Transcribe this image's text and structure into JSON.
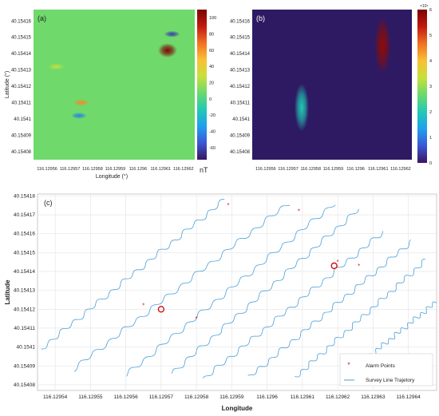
{
  "chart_data": [
    {
      "type": "heatmap",
      "panel_label": "(a)",
      "xlabel": "Longitude (°)",
      "ylabel": "Latitude (°)",
      "x_ticks": [
        "116.12956",
        "116.12957",
        "116.12958",
        "116.12959",
        "116.1296",
        "116.12961",
        "116.12962"
      ],
      "y_ticks": [
        "40.15416",
        "40.15415",
        "40.15414",
        "40.15413",
        "40.15412",
        "40.15411",
        "40.1541",
        "40.15409",
        "40.15408"
      ],
      "colorbar": {
        "unit": "nT",
        "ticks": [
          100,
          80,
          60,
          40,
          20,
          0,
          -20,
          -40,
          -60
        ],
        "range": [
          -75,
          110
        ],
        "colors": [
          "#3b1560",
          "#3b57d6",
          "#1f9fee",
          "#21c9b4",
          "#6bd96d",
          "#c8df3c",
          "#f8c034",
          "#f07022",
          "#c01a0e",
          "#7a0403"
        ]
      },
      "background_value": 8,
      "anomalies": [
        {
          "longitude": 116.129613,
          "latitude": 40.154142,
          "value": 108
        },
        {
          "longitude": 116.129615,
          "latitude": 40.154152,
          "value": -62
        },
        {
          "longitude": 116.129575,
          "latitude": 40.15411,
          "value": 62
        },
        {
          "longitude": 116.129574,
          "latitude": 40.154102,
          "value": -42
        },
        {
          "longitude": 116.129564,
          "latitude": 40.154132,
          "value": 26
        }
      ]
    },
    {
      "type": "heatmap",
      "panel_label": "(b)",
      "x_ticks": [
        "116.12956",
        "116.12957",
        "116.12958",
        "116.12959",
        "116.1296",
        "116.12961",
        "116.12962"
      ],
      "y_ticks": [
        "40.15416",
        "40.15415",
        "40.15414",
        "40.15413",
        "40.15412",
        "40.15411",
        "40.1541",
        "40.15409",
        "40.15408"
      ],
      "colorbar": {
        "exponent_label": "×10⁴",
        "ticks": [
          6,
          5,
          4,
          3,
          2,
          1,
          0
        ],
        "range": [
          0,
          6
        ],
        "colors": [
          "#3b1560",
          "#3b57d6",
          "#1f9fee",
          "#21c9b4",
          "#6bd96d",
          "#c8df3c",
          "#f8c034",
          "#f07022",
          "#c01a0e",
          "#7a0403"
        ]
      },
      "anomalies": [
        {
          "longitude": 116.129612,
          "latitude": 40.154145,
          "value": 5.8
        },
        {
          "longitude": 116.129576,
          "latitude": 40.154107,
          "value": 2.0
        }
      ]
    },
    {
      "type": "line",
      "panel_label": "(c)",
      "xlabel": "Longitude",
      "ylabel": "Latitude",
      "x_ticks": [
        "116.12954",
        "116.12955",
        "116.12956",
        "116.12957",
        "116.12958",
        "116.12959",
        "116.1296",
        "116.12961",
        "116.12962",
        "116.12963",
        "116.12964"
      ],
      "y_ticks": [
        "40.15418",
        "40.15417",
        "40.15416",
        "40.15415",
        "40.15414",
        "40.15413",
        "40.15412",
        "40.15411",
        "40.1541",
        "40.15409",
        "40.15408"
      ],
      "xlim": [
        116.129535,
        116.129648
      ],
      "ylim": [
        40.154077,
        40.154181
      ],
      "grid": true,
      "legend": {
        "position": "bottom-right",
        "entries": [
          "Alarm Points",
          "Survey Line Trajetory"
        ]
      },
      "colors": {
        "trajectory": "#4a9fd8",
        "alarm": "#e02020",
        "circle": "#cc1010"
      },
      "series": [
        {
          "name": "Alarm Points",
          "points": [
            {
              "x": 116.129589,
              "y": 40.154175
            },
            {
              "x": 116.129609,
              "y": 40.154172
            },
            {
              "x": 116.12962,
              "y": 40.154145
            },
            {
              "x": 116.129626,
              "y": 40.154143
            },
            {
              "x": 116.129565,
              "y": 40.154122
            },
            {
              "x": 116.12958,
              "y": 40.154115
            }
          ]
        },
        {
          "name": "Survey Line Trajetory",
          "lines": [
            [
              [
                116.129536,
                40.154099
              ],
              [
                116.129588,
                40.154178
              ]
            ],
            [
              [
                116.129545,
                40.154088
              ],
              [
                116.129606,
                40.154176
              ]
            ],
            [
              [
                116.12956,
                40.154085
              ],
              [
                116.129619,
                40.154176
              ]
            ],
            [
              [
                116.129573,
                40.154086
              ],
              [
                116.129626,
                40.154173
              ]
            ],
            [
              [
                116.129582,
                40.154083
              ],
              [
                116.129633,
                40.154161
              ]
            ],
            [
              [
                116.129595,
                40.154084
              ],
              [
                116.129641,
                40.154156
              ]
            ],
            [
              [
                116.129608,
                40.154084
              ],
              [
                116.129645,
                40.154146
              ]
            ],
            [
              [
                116.129621,
                40.154083
              ],
              [
                116.129648,
                40.154124
              ]
            ]
          ]
        }
      ],
      "highlights": [
        {
          "x": 116.12957,
          "y": 40.15412
        },
        {
          "x": 116.129619,
          "y": 40.154143
        }
      ]
    }
  ]
}
